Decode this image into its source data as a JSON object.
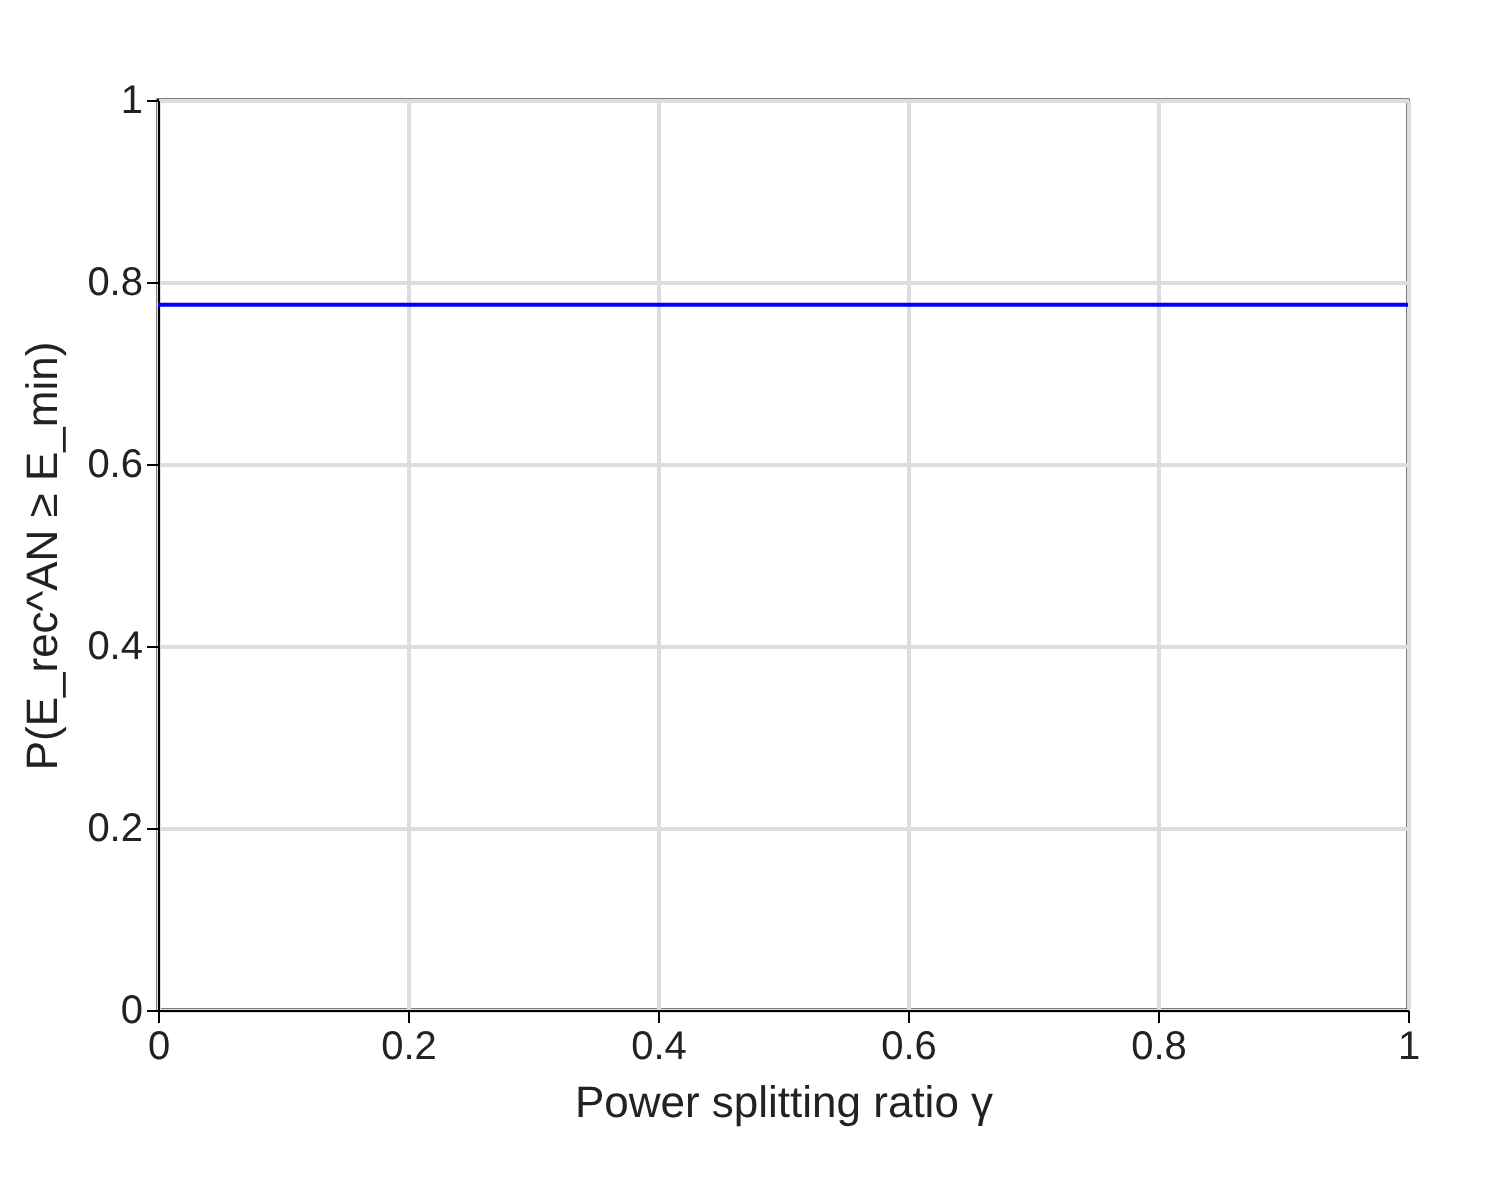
{
  "chart_data": {
    "type": "line",
    "xlabel": "Power splitting ratio γ",
    "ylabel": "P(E_rec^AN ≥ E_min)",
    "x": [
      0,
      1
    ],
    "series": [
      {
        "color": "#0000ff",
        "values": [
          0.775,
          0.775
        ]
      }
    ],
    "xlim": [
      0,
      1
    ],
    "xticks": [
      0,
      0.2,
      0.4,
      0.6,
      0.8,
      1
    ],
    "ylim": [
      0,
      1
    ],
    "yticks": [
      0,
      0.2,
      0.4,
      0.6,
      0.8,
      1
    ],
    "grid": true,
    "marker": "none",
    "line_style": "solid"
  }
}
